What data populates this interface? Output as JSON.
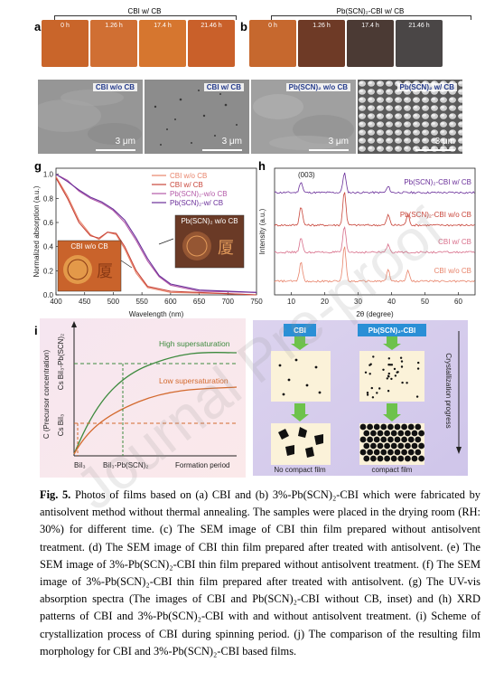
{
  "panel_a": {
    "letter": "a",
    "title": "CBI w/ CB",
    "times": [
      "0 h",
      "1.26 h",
      "17.4 h",
      "21.46 h"
    ],
    "colors": [
      "#c9652a",
      "#d06f33",
      "#d6762f",
      "#c9602a"
    ]
  },
  "panel_b": {
    "letter": "b",
    "title": "Pb(SCN)₂-CBI w/ CB",
    "times": [
      "0 h",
      "1.26 h",
      "17.4 h",
      "21.46 h"
    ],
    "colors": [
      "#c6682e",
      "#6e3a26",
      "#4b3a34",
      "#4a4646"
    ]
  },
  "sem": [
    {
      "letter": "c",
      "tag": "CBI w/o CB",
      "scale": "3 μm"
    },
    {
      "letter": "d",
      "tag": "CBI w/ CB",
      "scale": "3 μm"
    },
    {
      "letter": "e",
      "tag": "Pb(SCN)₂ w/o CB",
      "scale": "3 μm"
    },
    {
      "letter": "f",
      "tag": "Pb(SCN)₂ w/ CB",
      "scale": "3 μm"
    }
  ],
  "panel_g": {
    "letter": "g",
    "ylabel": "Normalized absorption (a.u.)",
    "xlabel": "Wavelength (nm)",
    "xticks": [
      "400",
      "450",
      "500",
      "550",
      "600",
      "650",
      "700",
      "750"
    ],
    "yticks": [
      "0.0",
      "0.2",
      "0.4",
      "0.6",
      "0.8",
      "1.0"
    ],
    "inset_left": "CBI w/o CB",
    "inset_right": "Pb(SCN)₂ w/o CB",
    "legend": [
      "CBI w/o CB",
      "CBI w/ CB",
      "Pb(SCN)₂-w/o CB",
      "Pb(SCN)₂-w/ CB"
    ]
  },
  "panel_h": {
    "letter": "h",
    "ylabel": "Intensity (a.u.)",
    "xlabel": "2θ (degree)",
    "xticks": [
      "10",
      "20",
      "30",
      "40",
      "50",
      "60"
    ],
    "peak_label": "(003)",
    "labels": [
      "Pb(SCN)₂-CBI w/ CB",
      "Pb(SCN)₂-CBI w/o CB",
      "CBI w/ CB",
      "CBI w/o CB"
    ]
  },
  "panel_i": {
    "letter": "i",
    "ylabel": "C (Precursor concentration)",
    "ytick_top": "Cs BiI₃-Pb(SCN)₂",
    "ytick_bottom": "Cs BiI₃",
    "xtick1": "BiI₃",
    "xtick2": "BiI₃-Pb(SCN)₂",
    "xlabel": "Formation period",
    "high": "High supersaturation",
    "low": "Low supersaturation"
  },
  "panel_j": {
    "letter": "j",
    "left_title": "CBI",
    "right_title": "Pb(SCN)₂-CBI",
    "left_result": "No compact film",
    "right_result": "compact film",
    "side": "Crystallization progress"
  },
  "caption": {
    "label": "Fig. 5.",
    "text": " Photos of films based on (a) CBI and (b) 3%-Pb(SCN)₂-CBI which were fabricated by antisolvent method without thermal annealing. The samples were placed in the drying room (RH: 30%) for different time. (c) The SEM image of CBI thin film prepared without antisolvent treatment. (d) The SEM image of CBI thin film prepared after treated with antisolvent. (e) The SEM image of 3%-Pb(SCN)₂-CBI thin film prepared without antisolvent treatment. (f) The SEM image of 3%-Pb(SCN)₂-CBI thin film prepared after treated with antisolvent. (g) The UV-vis absorption spectra (The images of CBI and Pb(SCN)₂-CBI without CB, inset) and (h) XRD patterns of CBI and 3%-Pb(SCN)₂-CBI with and without antisolvent treatment. (i) Scheme of crystallization process of CBI during spinning period. (j) The comparison of the resulting film morphology for CBI and 3%-Pb(SCN)₂-CBI based films."
  },
  "watermark": "Journal Pre-proof",
  "chart_data": [
    {
      "type": "line",
      "title": "",
      "xlabel": "Wavelength (nm)",
      "ylabel": "Normalized absorption (a.u.)",
      "xlim": [
        400,
        750
      ],
      "ylim": [
        0,
        1.05
      ],
      "series": [
        {
          "name": "CBI w/o CB",
          "color": "#e8846b",
          "x": [
            400,
            420,
            440,
            460,
            475,
            490,
            505,
            520,
            540,
            560,
            600,
            700,
            750
          ],
          "values": [
            0.98,
            0.82,
            0.62,
            0.5,
            0.46,
            0.52,
            0.5,
            0.38,
            0.18,
            0.06,
            0.02,
            0.01,
            0.0
          ]
        },
        {
          "name": "CBI w/ CB",
          "color": "#c8453a",
          "x": [
            400,
            420,
            440,
            460,
            475,
            490,
            505,
            520,
            540,
            560,
            600,
            700,
            750
          ],
          "values": [
            0.97,
            0.8,
            0.6,
            0.49,
            0.47,
            0.52,
            0.51,
            0.4,
            0.2,
            0.07,
            0.03,
            0.01,
            0.0
          ]
        },
        {
          "name": "Pb(SCN)₂-w/o CB",
          "color": "#b45aa8",
          "x": [
            400,
            420,
            440,
            460,
            480,
            500,
            520,
            540,
            560,
            580,
            600,
            650,
            750
          ],
          "values": [
            1.0,
            0.95,
            0.86,
            0.8,
            0.76,
            0.7,
            0.6,
            0.45,
            0.28,
            0.15,
            0.08,
            0.03,
            0.02
          ]
        },
        {
          "name": "Pb(SCN)₂-w/ CB",
          "color": "#6a2f9a",
          "x": [
            400,
            420,
            440,
            460,
            480,
            500,
            520,
            540,
            560,
            580,
            600,
            650,
            750
          ],
          "values": [
            1.0,
            0.94,
            0.87,
            0.81,
            0.77,
            0.71,
            0.62,
            0.47,
            0.3,
            0.16,
            0.09,
            0.04,
            0.02
          ]
        }
      ]
    },
    {
      "type": "line",
      "title": "",
      "xlabel": "2θ (degree)",
      "ylabel": "Intensity (a.u.)",
      "xlim": [
        5,
        65
      ],
      "series": [
        {
          "name": "Pb(SCN)₂-CBI w/ CB",
          "color": "#6a2f9a",
          "peaks": [
            12.9,
            25.9,
            39.0
          ]
        },
        {
          "name": "Pb(SCN)₂-CBI w/o CB",
          "color": "#c8453a",
          "peaks": [
            12.9,
            25.9,
            39.0,
            44.9
          ]
        },
        {
          "name": "CBI w/ CB",
          "color": "#d86e8a",
          "peaks": [
            12.9,
            25.9,
            39.0
          ]
        },
        {
          "name": "CBI w/o CB",
          "color": "#e8846b",
          "peaks": [
            12.9,
            25.9,
            39.0,
            44.9
          ]
        }
      ]
    }
  ]
}
